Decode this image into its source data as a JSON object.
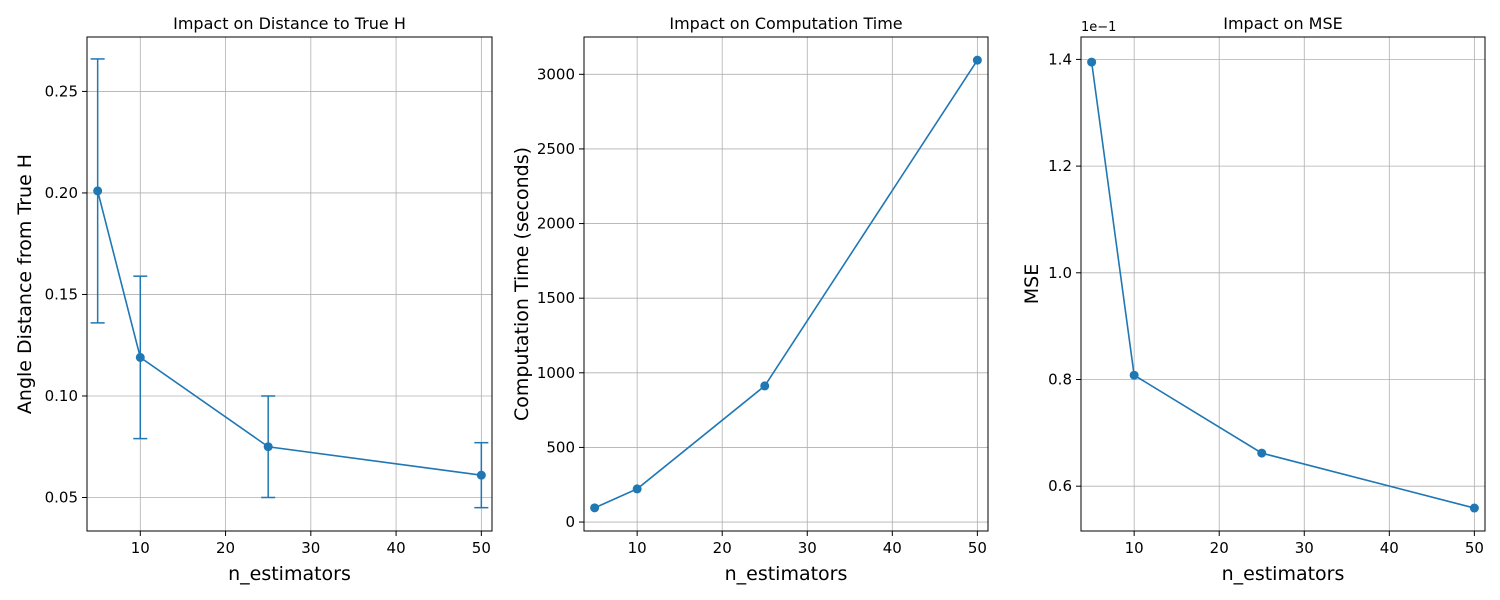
{
  "colors": {
    "series": "#1f77b4",
    "grid": "#b0b0b0",
    "axes": "#000000"
  },
  "chart_data": [
    {
      "type": "line",
      "title": "Impact on Distance to True H",
      "xlabel": "n_estimators",
      "ylabel": "Angle Distance from True H",
      "grid": true,
      "xlim": [
        3.75,
        51.25
      ],
      "ylim": [
        0.0335,
        0.2768
      ],
      "xticks": [
        "10",
        "20",
        "30",
        "40",
        "50"
      ],
      "yticks": [
        "0.05",
        "0.10",
        "0.15",
        "0.20",
        "0.25"
      ],
      "x": [
        5,
        10,
        25,
        50
      ],
      "y": [
        0.201,
        0.119,
        0.075,
        0.061
      ],
      "error": [
        0.065,
        0.04,
        0.025,
        0.016
      ]
    },
    {
      "type": "line",
      "title": "Impact on Computation Time",
      "xlabel": "n_estimators",
      "ylabel": "Computation Time (seconds)",
      "grid": true,
      "xlim": [
        3.75,
        51.25
      ],
      "ylim": [
        -60,
        3250
      ],
      "xticks": [
        "10",
        "20",
        "30",
        "40",
        "50"
      ],
      "yticks": [
        "0",
        "500",
        "1000",
        "1500",
        "2000",
        "2500",
        "3000"
      ],
      "x": [
        5,
        10,
        25,
        50
      ],
      "y": [
        95,
        222,
        912,
        3095
      ]
    },
    {
      "type": "line",
      "title": "Impact on MSE",
      "xlabel": "n_estimators",
      "ylabel": "MSE",
      "grid": true,
      "offset_text": "1e−1",
      "xlim": [
        3.75,
        51.25
      ],
      "ylim": [
        0.516,
        1.442
      ],
      "xticks": [
        "10",
        "20",
        "30",
        "40",
        "50"
      ],
      "yticks": [
        "0.6",
        "0.8",
        "1.0",
        "1.2",
        "1.4"
      ],
      "x": [
        5,
        10,
        25,
        50
      ],
      "y": [
        1.395,
        0.808,
        0.662,
        0.559
      ]
    }
  ]
}
